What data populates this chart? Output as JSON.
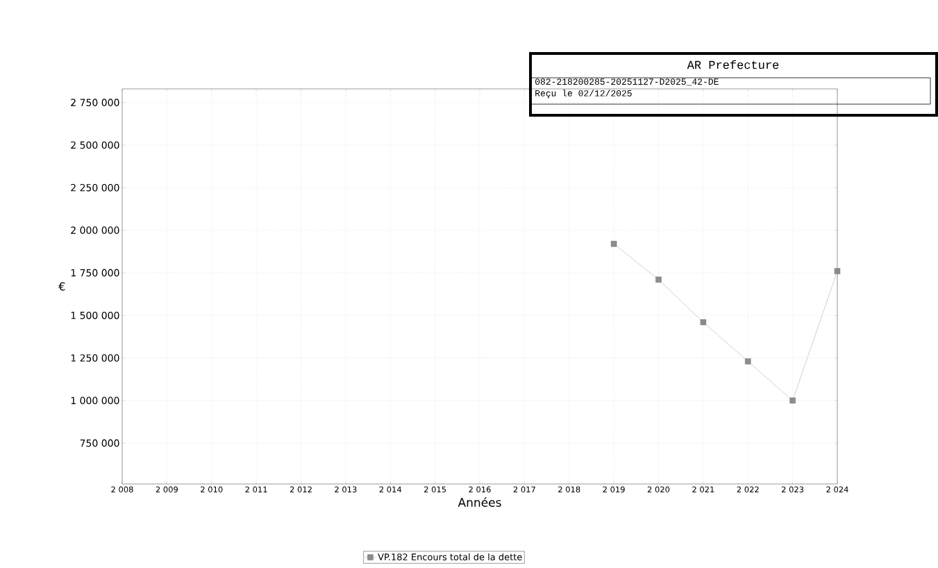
{
  "chart_data": {
    "type": "line",
    "xlabel": "Années",
    "ylabel": "€",
    "x": [
      2019,
      2020,
      2021,
      2022,
      2023,
      2024
    ],
    "series": [
      {
        "name": "VP.182 Encours total de la dette",
        "color": "#8c8c8c",
        "values": [
          1920000,
          1710000,
          1460000,
          1230000,
          1000000,
          1760000
        ]
      }
    ],
    "xlim": [
      2008,
      2024
    ],
    "ylim": [
      510000,
      2830000
    ],
    "xticks": [
      {
        "value": 2008,
        "label": "2 008"
      },
      {
        "value": 2009,
        "label": "2 009"
      },
      {
        "value": 2010,
        "label": "2 010"
      },
      {
        "value": 2011,
        "label": "2 011"
      },
      {
        "value": 2012,
        "label": "2 012"
      },
      {
        "value": 2013,
        "label": "2 013"
      },
      {
        "value": 2014,
        "label": "2 014"
      },
      {
        "value": 2015,
        "label": "2 015"
      },
      {
        "value": 2016,
        "label": "2 016"
      },
      {
        "value": 2017,
        "label": "2 017"
      },
      {
        "value": 2018,
        "label": "2 018"
      },
      {
        "value": 2019,
        "label": "2 019"
      },
      {
        "value": 2020,
        "label": "2 020"
      },
      {
        "value": 2021,
        "label": "2 021"
      },
      {
        "value": 2022,
        "label": "2 022"
      },
      {
        "value": 2023,
        "label": "2 023"
      },
      {
        "value": 2024,
        "label": "2 024"
      }
    ],
    "yticks": [
      {
        "value": 750000,
        "label": "750 000"
      },
      {
        "value": 1000000,
        "label": "1 000 000"
      },
      {
        "value": 1250000,
        "label": "1 250 000"
      },
      {
        "value": 1500000,
        "label": "1 500 000"
      },
      {
        "value": 1750000,
        "label": "1 750 000"
      },
      {
        "value": 2000000,
        "label": "2 000 000"
      },
      {
        "value": 2250000,
        "label": "2 250 000"
      },
      {
        "value": 2500000,
        "label": "2 500 000"
      },
      {
        "value": 2750000,
        "label": "2 750 000"
      }
    ],
    "grid": true,
    "legend": "bottom",
    "marker": "square",
    "line_style": "solid",
    "annotations": [
      "AR Prefecture",
      "082-218200285-20251127-D2025_42-DE",
      "Reçu le 02/12/2025"
    ]
  }
}
